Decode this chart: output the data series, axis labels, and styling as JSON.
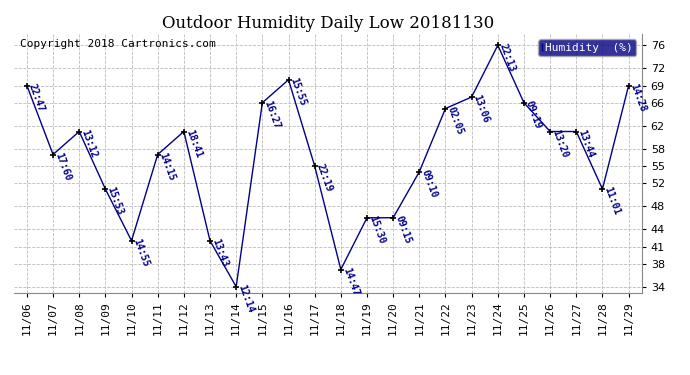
{
  "title": "Outdoor Humidity Daily Low 20181130",
  "copyright": "Copyright 2018 Cartronics.com",
  "legend_label": "Humidity  (%)",
  "background_color": "#ffffff",
  "plot_bg_color": "#ffffff",
  "grid_color": "#bbbbbb",
  "line_color": "#00008B",
  "marker_color": "#000000",
  "ylim": [
    33,
    78
  ],
  "yticks": [
    34,
    38,
    41,
    44,
    48,
    52,
    55,
    58,
    62,
    66,
    69,
    72,
    76
  ],
  "dates": [
    "11/06",
    "11/07",
    "11/08",
    "11/09",
    "11/10",
    "11/11",
    "11/12",
    "11/13",
    "11/14",
    "11/15",
    "11/16",
    "11/17",
    "11/18",
    "11/19",
    "11/20",
    "11/21",
    "11/22",
    "11/23",
    "11/24",
    "11/25",
    "11/26",
    "11/27",
    "11/28",
    "11/29"
  ],
  "values": [
    69,
    57,
    61,
    51,
    42,
    57,
    61,
    42,
    34,
    66,
    70,
    55,
    37,
    46,
    46,
    54,
    65,
    67,
    76,
    66,
    61,
    61,
    51,
    69
  ],
  "times": [
    "22:47",
    "17:60",
    "13:12",
    "15:53",
    "14:55",
    "14:15",
    "18:41",
    "13:43",
    "12:14",
    "16:27",
    "15:55",
    "22:19",
    "14:47",
    "15:30",
    "09:15",
    "09:10",
    "02:05",
    "13:06",
    "22:13",
    "09:19",
    "13:20",
    "13:44",
    "11:01",
    "14:28"
  ],
  "label_rotation": -70,
  "label_fontsize": 7,
  "title_fontsize": 12,
  "copyright_fontsize": 8,
  "tick_fontsize": 8
}
